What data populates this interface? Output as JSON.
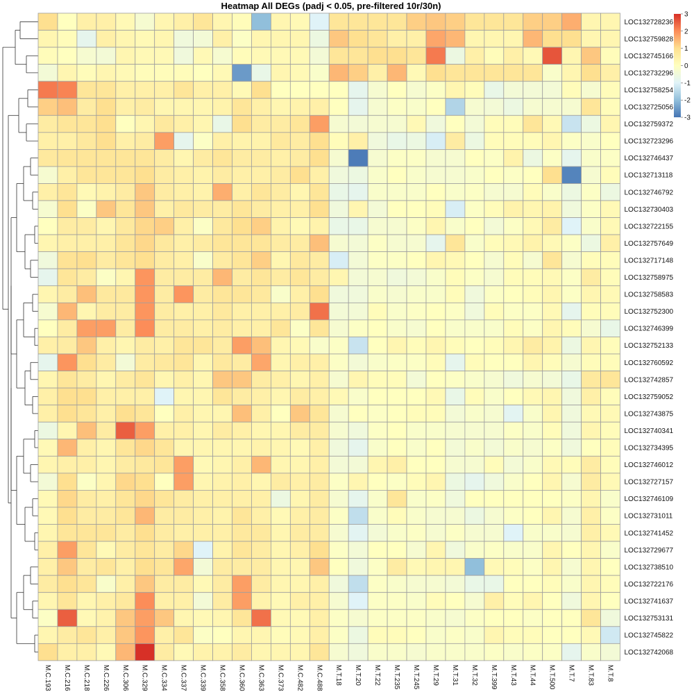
{
  "chart_data": {
    "type": "heatmap",
    "title": "Heatmap All DEGs (padj < 0.05, pre-filtered 10r/30n)",
    "columns": [
      "M.C.193",
      "M.C.216",
      "M.C.218",
      "M.C.226",
      "M.C.306",
      "M.C.329",
      "M.C.334",
      "M.C.337",
      "M.C.339",
      "M.C.358",
      "M.C.360",
      "M.C.363",
      "M.C.373",
      "M.C.482",
      "M.C.488",
      "M.T.18",
      "M.T.20",
      "M.T.22",
      "M.T.235",
      "M.T.245",
      "M.T.29",
      "M.T.31",
      "M.T.32",
      "M.T.399",
      "M.T.43",
      "M.T.44",
      "M.T.500",
      "M.T.7",
      "M.T.83",
      "M.T.8"
    ],
    "rows": [
      "LOC132728236",
      "LOC132759828",
      "LOC132745166",
      "LOC132732296",
      "LOC132758254",
      "LOC132725056",
      "LOC132759372",
      "LOC132723296",
      "LOC132746437",
      "LOC132713118",
      "LOC132746792",
      "LOC132730403",
      "LOC132722155",
      "LOC132757649",
      "LOC132717148",
      "LOC132758975",
      "LOC132758583",
      "LOC132752300",
      "LOC132746399",
      "LOC132752133",
      "LOC132760592",
      "LOC132742857",
      "LOC132759052",
      "LOC132743875",
      "LOC132740341",
      "LOC132734395",
      "LOC132746012",
      "LOC132727157",
      "LOC132746109",
      "LOC132731011",
      "LOC132741452",
      "LOC132729677",
      "LOC132738510",
      "LOC132722176",
      "LOC132741637",
      "LOC132753131",
      "LOC132745822",
      "LOC132742068"
    ],
    "values": [
      [
        1.0,
        0.0,
        0.5,
        0.5,
        0.2,
        -0.3,
        0.3,
        0.5,
        0.8,
        0.3,
        0.1,
        -2.0,
        0.3,
        0.2,
        -1.0,
        0.8,
        0.8,
        0.8,
        0.8,
        1.2,
        1.3,
        1.2,
        0.8,
        0.8,
        0.8,
        1.2,
        1.2,
        1.6,
        0.3,
        0.3
      ],
      [
        0.3,
        0.1,
        -0.8,
        0.5,
        0.3,
        0.2,
        0.3,
        -0.5,
        -0.4,
        0.5,
        -0.1,
        0.3,
        0.3,
        0.3,
        -0.6,
        1.3,
        1.0,
        0.8,
        0.5,
        0.5,
        1.7,
        1.5,
        0.3,
        0.3,
        0.3,
        1.5,
        1.0,
        1.0,
        0.3,
        0.3
      ],
      [
        0.1,
        0.0,
        -0.3,
        -0.4,
        0.3,
        0.2,
        0.2,
        -0.5,
        0.2,
        -0.3,
        0.1,
        0.2,
        0.2,
        0.2,
        -0.4,
        0.8,
        0.8,
        1.0,
        1.0,
        0.8,
        2.2,
        -0.6,
        0.5,
        0.1,
        0.5,
        0.2,
        2.6,
        0.3,
        1.3,
        0.1
      ],
      [
        -0.4,
        0.3,
        0.1,
        0.3,
        0.2,
        0.1,
        0.1,
        0.1,
        0.0,
        0.2,
        -2.5,
        -0.7,
        0.3,
        0.2,
        -0.2,
        1.5,
        1.2,
        0.5,
        1.5,
        0.2,
        1.0,
        0.8,
        0.8,
        0.8,
        0.8,
        0.8,
        -0.2,
        0.3,
        1.0,
        0.5
      ],
      [
        2.2,
        2.1,
        0.8,
        0.8,
        0.5,
        0.5,
        0.5,
        0.8,
        0.5,
        0.5,
        0.2,
        1.0,
        0.0,
        0.0,
        0.0,
        0.0,
        -0.8,
        -0.3,
        0.0,
        -0.3,
        -0.1,
        0.3,
        0.1,
        -0.7,
        -0.4,
        -0.4,
        -0.4,
        0.1,
        -0.3,
        0.1
      ],
      [
        1.2,
        1.4,
        0.6,
        1.0,
        0.5,
        0.6,
        0.3,
        0.3,
        0.3,
        0.4,
        0.8,
        0.5,
        0.3,
        0.4,
        0.5,
        0.0,
        -0.8,
        -0.3,
        -0.1,
        -0.2,
        0.0,
        -1.6,
        -0.3,
        -0.4,
        -0.6,
        -0.3,
        -0.3,
        -0.3,
        0.8,
        0.1
      ],
      [
        0.6,
        0.8,
        0.8,
        1.0,
        0.0,
        0.3,
        0.7,
        0.5,
        0.3,
        -0.7,
        1.0,
        0.6,
        0.6,
        0.8,
        1.8,
        -0.3,
        -0.4,
        -0.3,
        -0.3,
        0.2,
        -0.5,
        0.0,
        -0.4,
        0.1,
        0.1,
        0.8,
        0.2,
        -1.3,
        -0.6,
        0.3
      ],
      [
        0.5,
        0.5,
        0.7,
        1.0,
        0.5,
        0.6,
        1.8,
        -0.8,
        -0.1,
        0.5,
        0.4,
        0.4,
        0.7,
        0.6,
        1.0,
        0.1,
        0.5,
        -0.5,
        -0.7,
        -0.6,
        -1.1,
        0.6,
        -0.6,
        0.1,
        0.1,
        0.1,
        0.3,
        -0.1,
        -0.2,
        0.0
      ],
      [
        0.7,
        0.8,
        0.8,
        0.8,
        0.8,
        0.8,
        0.6,
        0.3,
        0.6,
        0.8,
        0.6,
        0.6,
        0.5,
        0.6,
        1.0,
        -0.3,
        -2.9,
        -0.3,
        -0.1,
        -0.1,
        -0.3,
        -0.3,
        0.0,
        -0.1,
        0.4,
        -0.6,
        -0.1,
        -0.8,
        -0.2,
        -0.1
      ],
      [
        -0.3,
        0.5,
        0.8,
        0.8,
        0.8,
        1.0,
        0.6,
        0.5,
        0.4,
        0.6,
        0.5,
        0.5,
        0.6,
        1.0,
        0.5,
        -0.5,
        -0.6,
        -0.2,
        0.0,
        -0.2,
        -0.3,
        -0.3,
        -0.2,
        0.0,
        -0.1,
        0.0,
        1.0,
        -2.8,
        -0.3,
        0.1
      ],
      [
        0.5,
        0.8,
        0.2,
        0.4,
        0.6,
        1.3,
        0.6,
        0.5,
        0.4,
        1.6,
        0.5,
        0.8,
        0.6,
        0.3,
        0.8,
        -0.7,
        -0.8,
        -0.2,
        -0.2,
        -0.2,
        0.0,
        -0.2,
        -0.1,
        -0.3,
        -0.3,
        0.1,
        -0.2,
        -0.6,
        -0.1,
        -0.6
      ],
      [
        -0.3,
        1.0,
        -0.1,
        1.3,
        0.8,
        1.3,
        0.5,
        0.7,
        0.6,
        0.6,
        0.8,
        0.6,
        0.5,
        0.5,
        1.0,
        -0.5,
        0.3,
        -0.4,
        0.0,
        0.0,
        0.1,
        -1.1,
        -0.1,
        0.1,
        0.4,
        0.3,
        0.4,
        -0.5,
        -0.1,
        0.2
      ],
      [
        0.0,
        0.6,
        0.6,
        0.3,
        0.7,
        1.1,
        1.2,
        0.5,
        -0.1,
        0.7,
        1.0,
        1.2,
        0.4,
        0.2,
        0.4,
        -0.7,
        -0.7,
        -0.3,
        -0.3,
        -0.1,
        0.3,
        -0.2,
        0.0,
        -0.4,
        -0.1,
        0.2,
        0.6,
        -1.0,
        -0.2,
        0.2
      ],
      [
        0.3,
        0.5,
        0.5,
        0.5,
        0.8,
        1.1,
        0.7,
        0.5,
        0.6,
        0.8,
        0.8,
        0.8,
        0.6,
        0.6,
        1.4,
        -0.3,
        -0.4,
        -0.1,
        -0.3,
        -0.3,
        -0.8,
        0.8,
        -0.2,
        0.1,
        0.2,
        0.4,
        0.2,
        -0.1,
        -0.6,
        0.5
      ],
      [
        -0.5,
        0.9,
        1.0,
        0.6,
        0.8,
        1.0,
        0.6,
        0.5,
        -0.2,
        0.6,
        0.8,
        1.2,
        0.3,
        0.7,
        0.6,
        -1.1,
        -0.4,
        -0.1,
        -0.1,
        0.0,
        0.3,
        0.2,
        0.0,
        -0.3,
        0.1,
        -0.3,
        0.8,
        -0.3,
        0.1,
        0.1
      ],
      [
        -0.8,
        0.8,
        0.6,
        -0.1,
        0.3,
        1.9,
        0.6,
        0.6,
        0.6,
        1.5,
        0.6,
        0.8,
        0.6,
        0.8,
        0.6,
        0.3,
        -0.4,
        -0.3,
        -0.5,
        -0.4,
        -0.2,
        0.1,
        -0.1,
        -0.3,
        0.1,
        0.1,
        0.2,
        -0.1,
        0.6,
        0.1
      ],
      [
        0.3,
        0.6,
        1.4,
        0.7,
        0.7,
        1.9,
        0.6,
        1.9,
        0.6,
        0.8,
        0.8,
        0.7,
        -0.2,
        0.5,
        1.0,
        -0.5,
        -0.5,
        -0.2,
        -0.3,
        -0.2,
        -0.2,
        0.1,
        -0.5,
        -0.1,
        0.0,
        0.1,
        0.3,
        -0.1,
        0.3,
        0.2
      ],
      [
        -0.3,
        1.5,
        0.3,
        0.6,
        0.6,
        1.9,
        0.6,
        0.5,
        0.5,
        0.7,
        0.5,
        0.5,
        0.5,
        0.6,
        2.3,
        -0.4,
        -0.4,
        0.1,
        -0.2,
        -0.1,
        0.0,
        -0.1,
        -0.5,
        0.1,
        -0.1,
        -0.1,
        0.2,
        -0.8,
        0.1,
        0.1
      ],
      [
        0.0,
        0.6,
        1.8,
        1.8,
        0.6,
        2.0,
        0.6,
        0.6,
        0.5,
        0.6,
        0.5,
        0.5,
        0.8,
        -0.1,
        0.8,
        -0.3,
        -0.1,
        0.0,
        -0.2,
        -0.3,
        0.0,
        -0.2,
        -0.2,
        -0.2,
        0.1,
        -0.1,
        0.3,
        0.1,
        -0.3,
        -0.7
      ],
      [
        0.5,
        0.6,
        1.3,
        0.5,
        0.3,
        0.6,
        0.5,
        0.8,
        0.8,
        0.6,
        1.8,
        1.4,
        0.3,
        0.2,
        -0.2,
        -0.1,
        -1.3,
        0.0,
        0.3,
        0.1,
        0.3,
        0.1,
        0.0,
        0.1,
        0.3,
        0.6,
        0.4,
        -0.6,
        0.3,
        0.1
      ],
      [
        -0.8,
        1.9,
        1.0,
        0.6,
        -0.4,
        0.6,
        0.7,
        0.8,
        0.3,
        0.7,
        0.6,
        1.7,
        0.3,
        0.5,
        0.5,
        -0.1,
        -0.4,
        -0.2,
        -0.1,
        -0.1,
        0.1,
        -0.8,
        0.1,
        0.0,
        0.0,
        0.3,
        0.1,
        -0.3,
        0.1,
        0.1
      ],
      [
        0.3,
        0.8,
        0.6,
        0.3,
        0.6,
        0.8,
        0.3,
        0.5,
        0.3,
        1.3,
        1.3,
        0.6,
        0.5,
        0.3,
        0.5,
        -0.3,
        0.3,
        0.1,
        0.1,
        -0.4,
        0.0,
        -0.1,
        -0.2,
        -0.3,
        -0.5,
        -0.3,
        -0.4,
        -0.7,
        0.7,
        0.8
      ],
      [
        0.5,
        1.0,
        1.0,
        0.5,
        0.5,
        0.5,
        -1.0,
        0.3,
        0.3,
        0.8,
        0.6,
        0.5,
        0.3,
        0.6,
        0.5,
        0.2,
        -0.2,
        0.0,
        0.0,
        0.0,
        0.2,
        -0.7,
        0.1,
        -0.2,
        0.0,
        0.2,
        0.3,
        -0.5,
        0.5,
        0.1
      ],
      [
        0.5,
        1.0,
        0.8,
        0.5,
        1.0,
        0.8,
        0.0,
        0.5,
        0.3,
        0.3,
        1.4,
        0.5,
        0.0,
        1.3,
        0.8,
        -0.3,
        0.0,
        -0.1,
        0.0,
        0.1,
        0.1,
        -0.4,
        -0.2,
        -0.3,
        -0.9,
        -0.2,
        0.3,
        -0.5,
        0.2,
        0.2
      ],
      [
        -0.6,
        0.3,
        1.4,
        0.6,
        2.5,
        1.8,
        0.5,
        0.5,
        0.3,
        0.6,
        0.5,
        0.3,
        0.3,
        0.6,
        0.6,
        -0.3,
        -0.5,
        -0.1,
        0.0,
        -0.2,
        -0.2,
        -0.3,
        -0.3,
        -0.3,
        -0.1,
        -0.2,
        0.1,
        -0.5,
        0.3,
        0.1
      ],
      [
        0.2,
        1.5,
        0.5,
        0.3,
        0.8,
        1.1,
        0.8,
        0.3,
        0.3,
        0.3,
        0.3,
        0.4,
        0.3,
        0.2,
        0.5,
        -0.5,
        -0.8,
        -0.2,
        0.0,
        -0.2,
        0.0,
        -0.4,
        -0.2,
        -0.4,
        -0.2,
        -0.3,
        -0.1,
        -0.5,
        0.0,
        0.1
      ],
      [
        0.3,
        0.5,
        0.5,
        0.3,
        0.6,
        0.7,
        0.8,
        1.8,
        0.2,
        0.3,
        0.5,
        1.5,
        0.3,
        0.3,
        0.5,
        -0.4,
        -0.4,
        0.3,
        0.5,
        0.0,
        0.0,
        -0.3,
        -0.3,
        0.1,
        -0.4,
        -0.2,
        0.2,
        0.1,
        0.6,
        0.1
      ],
      [
        -0.4,
        1.0,
        -0.1,
        0.3,
        1.1,
        1.0,
        0.0,
        1.8,
        0.3,
        0.4,
        0.5,
        0.3,
        0.6,
        0.5,
        0.6,
        -0.1,
        0.3,
        0.0,
        -0.1,
        0.1,
        0.3,
        -0.6,
        -0.8,
        -0.5,
        -0.2,
        0.0,
        0.3,
        -0.3,
        0.6,
        0.2
      ],
      [
        0.2,
        1.1,
        0.6,
        0.5,
        0.8,
        1.1,
        0.8,
        0.6,
        0.5,
        0.5,
        0.5,
        0.5,
        -0.6,
        0.3,
        0.6,
        -0.3,
        -0.8,
        -0.2,
        0.8,
        -0.2,
        -0.1,
        -0.5,
        0.0,
        0.0,
        0.0,
        0.0,
        0.0,
        -0.1,
        0.3,
        -0.2
      ],
      [
        0.2,
        1.0,
        0.6,
        0.6,
        0.8,
        1.5,
        0.6,
        0.6,
        0.5,
        0.4,
        0.8,
        0.5,
        0.2,
        0.5,
        0.6,
        -0.1,
        -1.4,
        -0.2,
        0.1,
        -0.2,
        -0.3,
        -0.3,
        -0.6,
        -0.3,
        -0.1,
        0.0,
        0.3,
        -0.3,
        0.5,
        -0.1
      ],
      [
        0.3,
        0.8,
        0.8,
        0.8,
        0.6,
        1.0,
        0.6,
        0.5,
        0.5,
        0.5,
        0.7,
        0.7,
        0.3,
        0.6,
        0.6,
        -0.3,
        -0.9,
        -0.4,
        -0.2,
        -0.1,
        -0.3,
        -0.1,
        -0.3,
        -0.3,
        -1.0,
        -0.2,
        -0.2,
        -0.3,
        0.5,
        0.2
      ],
      [
        0.5,
        1.8,
        0.8,
        0.2,
        0.6,
        0.8,
        0.6,
        1.1,
        -1.0,
        0.4,
        0.8,
        0.6,
        0.3,
        0.5,
        1.0,
        -0.1,
        -0.4,
        0.0,
        0.0,
        -0.3,
        0.3,
        -0.5,
        -0.2,
        -0.1,
        -0.2,
        -0.2,
        0.3,
        0.0,
        0.3,
        -0.2
      ],
      [
        0.5,
        1.3,
        0.6,
        0.8,
        0.5,
        1.0,
        0.8,
        1.7,
        -0.4,
        0.6,
        0.6,
        0.6,
        0.3,
        0.3,
        1.3,
        0.0,
        -0.5,
        -0.1,
        0.6,
        0.2,
        0.3,
        0.3,
        -2.0,
        0.2,
        0.1,
        -0.1,
        0.3,
        -0.3,
        0.3,
        0.0
      ],
      [
        0.6,
        1.0,
        0.8,
        -0.2,
        0.5,
        1.3,
        0.6,
        0.6,
        0.2,
        0.6,
        1.8,
        0.6,
        0.3,
        0.3,
        0.5,
        -0.5,
        -1.4,
        -0.1,
        -0.2,
        -0.3,
        -0.3,
        -0.4,
        -0.7,
        -0.7,
        0.0,
        0.0,
        0.1,
        -0.2,
        0.3,
        0.1
      ],
      [
        0.3,
        0.8,
        0.3,
        0.5,
        0.7,
        2.0,
        0.5,
        0.5,
        -0.4,
        0.6,
        1.8,
        0.4,
        0.2,
        0.5,
        0.5,
        -0.3,
        -1.0,
        -0.1,
        -0.1,
        -0.2,
        0.1,
        0.0,
        -0.3,
        0.5,
        0.1,
        0.3,
        0.0,
        -0.5,
        0.3,
        0.0
      ],
      [
        -0.1,
        2.5,
        0.2,
        0.4,
        1.3,
        1.8,
        1.3,
        0.3,
        0.2,
        0.3,
        0.8,
        2.3,
        0.2,
        0.2,
        0.5,
        -0.1,
        -0.3,
        -0.1,
        -0.1,
        -0.1,
        -0.2,
        -0.3,
        -0.1,
        0.0,
        0.0,
        -0.1,
        0.0,
        0.0,
        0.8,
        -0.5
      ],
      [
        0.3,
        0.6,
        0.8,
        0.5,
        1.3,
        1.9,
        0.5,
        0.8,
        -0.1,
        0.0,
        0.3,
        0.3,
        0.1,
        0.2,
        0.5,
        -0.1,
        -0.6,
        0.1,
        0.1,
        0.0,
        -0.2,
        -0.1,
        -0.2,
        0.3,
        0.1,
        0.1,
        0.0,
        0.0,
        0.2,
        -1.2
      ],
      [
        1.0,
        0.5,
        0.5,
        0.2,
        1.5,
        3.0,
        0.6,
        0.2,
        0.4,
        0.4,
        0.6,
        0.3,
        0.3,
        0.3,
        0.8,
        -0.3,
        -0.5,
        -0.2,
        -0.2,
        -0.3,
        -0.2,
        -0.2,
        -0.2,
        -0.1,
        -0.2,
        -0.1,
        -0.1,
        -0.8,
        -0.2,
        -0.4
      ]
    ],
    "color_scale": {
      "min": -3,
      "max": 3,
      "colors": [
        "#4575b4",
        "#91bfdb",
        "#e0f3f8",
        "#ffffbf",
        "#fee090",
        "#fc8d59",
        "#d73027"
      ]
    },
    "legend_ticks": [
      3,
      2,
      1,
      0,
      -1,
      -2,
      -3
    ],
    "row_dendrogram": true,
    "grid": true,
    "cell_border_color": "#9e9e9e"
  }
}
